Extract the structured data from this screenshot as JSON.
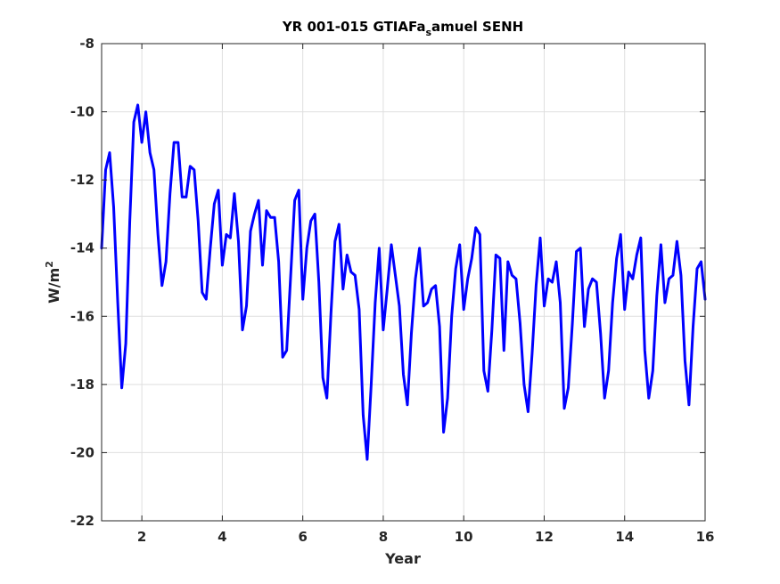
{
  "chart_data": {
    "type": "line",
    "title": "YR 001-015 GTIAFa",
    "title_subscript": "s",
    "title_suffix": "amuel SENH",
    "xlabel": "Year",
    "ylabel": "W/m",
    "ylabel_superscript": "2",
    "xlim": [
      1,
      16
    ],
    "ylim": [
      -22,
      -8
    ],
    "xticks": [
      2,
      4,
      6,
      8,
      10,
      12,
      14,
      16
    ],
    "yticks": [
      -22,
      -20,
      -18,
      -16,
      -14,
      -12,
      -10,
      -8
    ],
    "grid": true,
    "series": [
      {
        "color": "#0000ff",
        "x": [
          1.0,
          1.1,
          1.2,
          1.3,
          1.4,
          1.5,
          1.6,
          1.7,
          1.8,
          1.9,
          2.0,
          2.1,
          2.2,
          2.3,
          2.4,
          2.5,
          2.6,
          2.7,
          2.8,
          2.9,
          3.0,
          3.1,
          3.2,
          3.3,
          3.4,
          3.5,
          3.6,
          3.7,
          3.8,
          3.9,
          4.0,
          4.1,
          4.2,
          4.3,
          4.4,
          4.5,
          4.6,
          4.7,
          4.8,
          4.9,
          5.0,
          5.1,
          5.2,
          5.3,
          5.4,
          5.5,
          5.6,
          5.7,
          5.8,
          5.9,
          6.0,
          6.1,
          6.2,
          6.3,
          6.4,
          6.5,
          6.6,
          6.7,
          6.8,
          6.9,
          7.0,
          7.1,
          7.2,
          7.3,
          7.4,
          7.5,
          7.6,
          7.7,
          7.8,
          7.9,
          8.0,
          8.1,
          8.2,
          8.3,
          8.4,
          8.5,
          8.6,
          8.7,
          8.8,
          8.9,
          9.0,
          9.1,
          9.2,
          9.3,
          9.4,
          9.5,
          9.6,
          9.7,
          9.8,
          9.9,
          10.0,
          10.1,
          10.2,
          10.3,
          10.4,
          10.5,
          10.6,
          10.7,
          10.8,
          10.9,
          11.0,
          11.1,
          11.2,
          11.3,
          11.4,
          11.5,
          11.6,
          11.7,
          11.8,
          11.9,
          12.0,
          12.1,
          12.2,
          12.3,
          12.4,
          12.5,
          12.6,
          12.7,
          12.8,
          12.9,
          13.0,
          13.1,
          13.2,
          13.3,
          13.4,
          13.5,
          13.6,
          13.7,
          13.8,
          13.9,
          14.0,
          14.1,
          14.2,
          14.3,
          14.4,
          14.5,
          14.6,
          14.7,
          14.8,
          14.9,
          15.0,
          15.1,
          15.2,
          15.3,
          15.4,
          15.5,
          15.6,
          15.7,
          15.8,
          15.9,
          16.0
        ],
        "y": [
          -14.0,
          -11.7,
          -11.2,
          -12.8,
          -15.6,
          -18.1,
          -16.8,
          -13.2,
          -10.3,
          -9.8,
          -10.9,
          -10.0,
          -11.2,
          -11.7,
          -13.6,
          -15.1,
          -14.4,
          -12.4,
          -10.9,
          -10.9,
          -12.5,
          -12.5,
          -11.6,
          -11.7,
          -13.2,
          -15.3,
          -15.5,
          -14.0,
          -12.7,
          -12.3,
          -14.5,
          -13.6,
          -13.7,
          -12.4,
          -13.8,
          -16.4,
          -15.7,
          -13.5,
          -13.0,
          -12.6,
          -14.5,
          -12.9,
          -13.1,
          -13.1,
          -14.4,
          -17.2,
          -17.0,
          -14.8,
          -12.6,
          -12.3,
          -15.5,
          -14.0,
          -13.2,
          -13.0,
          -15.0,
          -17.8,
          -18.4,
          -15.9,
          -13.8,
          -13.3,
          -15.2,
          -14.2,
          -14.7,
          -14.8,
          -15.8,
          -18.9,
          -20.2,
          -18.0,
          -15.6,
          -14.0,
          -16.4,
          -15.2,
          -13.9,
          -14.8,
          -15.7,
          -17.7,
          -18.6,
          -16.5,
          -14.9,
          -14.0,
          -15.7,
          -15.6,
          -15.2,
          -15.1,
          -16.3,
          -19.4,
          -18.4,
          -16.0,
          -14.6,
          -13.9,
          -15.8,
          -14.9,
          -14.3,
          -13.4,
          -13.6,
          -17.6,
          -18.2,
          -16.4,
          -14.2,
          -14.3,
          -17.0,
          -14.4,
          -14.8,
          -14.9,
          -16.2,
          -18.0,
          -18.8,
          -17.1,
          -15.1,
          -13.7,
          -15.7,
          -14.9,
          -15.0,
          -14.4,
          -15.6,
          -18.7,
          -18.1,
          -16.2,
          -14.1,
          -14.0,
          -16.3,
          -15.2,
          -14.9,
          -15.0,
          -16.5,
          -18.4,
          -17.6,
          -15.6,
          -14.3,
          -13.6,
          -15.8,
          -14.7,
          -14.9,
          -14.2,
          -13.7,
          -17.0,
          -18.4,
          -17.6,
          -15.4,
          -13.9,
          -15.6,
          -14.9,
          -14.8,
          -13.8,
          -14.8,
          -17.3,
          -18.6,
          -16.3,
          -14.6,
          -14.4,
          -15.5
        ]
      }
    ]
  }
}
